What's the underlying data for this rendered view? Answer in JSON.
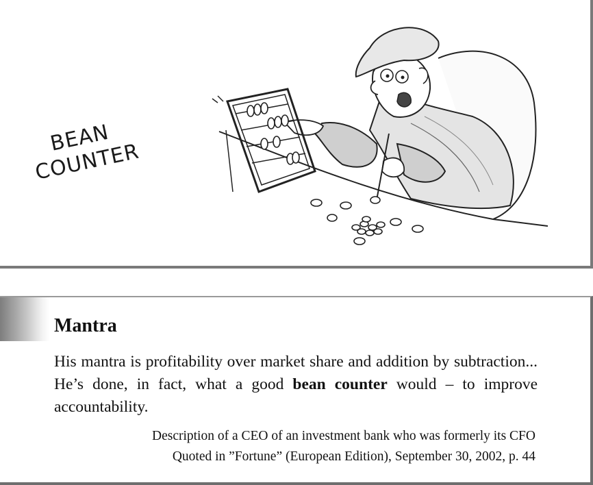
{
  "cartoon": {
    "caption_line1": "BEAN",
    "caption_line2": "COUNTER"
  },
  "box": {
    "title": "Mantra",
    "text_part1": "His mantra is profitability over market share and addition by subtraction... He’s done, in fact, what a good ",
    "text_bold": "bean counter",
    "text_part2": " would – to improve accountability.",
    "attribution_line1": "Description of a CEO of an investment bank who was formerly its CFO",
    "attribution_line2": "Quoted in ”Fortune” (European Edition), September 30, 2002, p. 44"
  }
}
